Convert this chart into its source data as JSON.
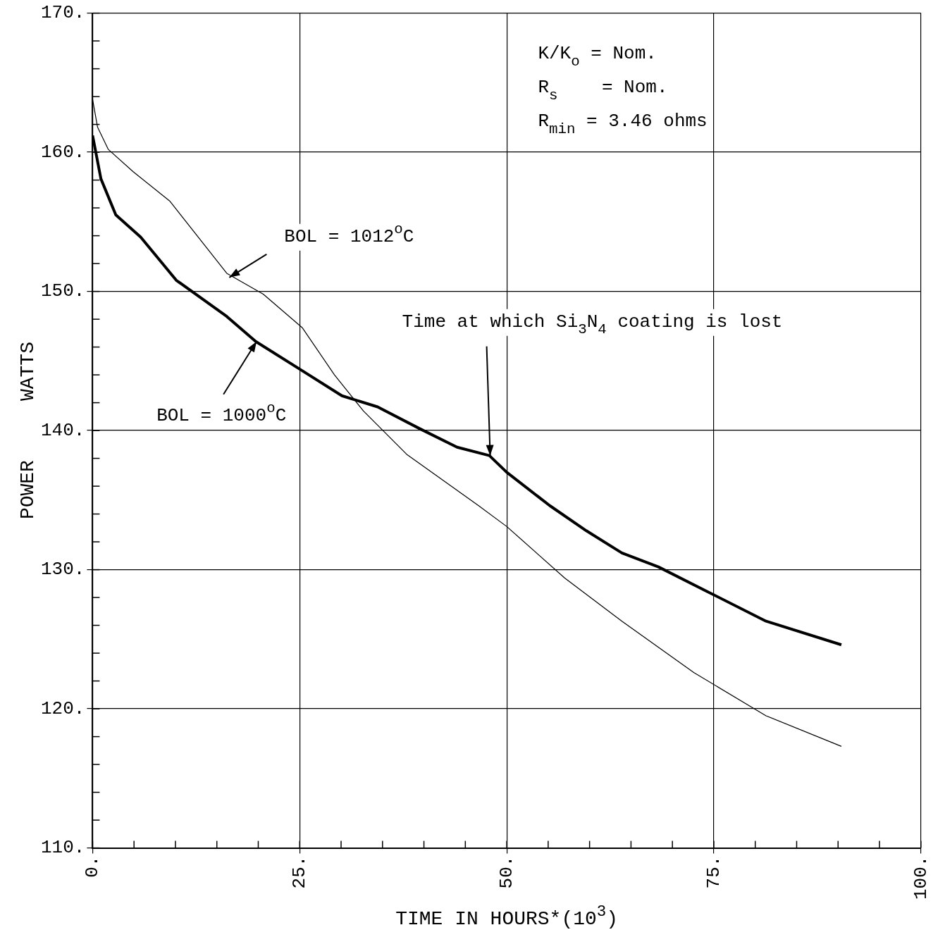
{
  "chart_data": {
    "type": "line",
    "xlabel": "TIME IN HOURS*(10$^{3}$)",
    "ylabel": "POWER     WATTS",
    "xlim": [
      0,
      100
    ],
    "ylim": [
      110,
      170
    ],
    "xticks": [
      {
        "value": 0,
        "label": "0."
      },
      {
        "value": 5,
        "label": null
      },
      {
        "value": 10,
        "label": null
      },
      {
        "value": 15,
        "label": null
      },
      {
        "value": 20,
        "label": null
      },
      {
        "value": 25,
        "label": "25."
      },
      {
        "value": 30,
        "label": null
      },
      {
        "value": 35,
        "label": null
      },
      {
        "value": 40,
        "label": null
      },
      {
        "value": 45,
        "label": null
      },
      {
        "value": 50,
        "label": "50."
      },
      {
        "value": 55,
        "label": null
      },
      {
        "value": 60,
        "label": null
      },
      {
        "value": 65,
        "label": null
      },
      {
        "value": 70,
        "label": null
      },
      {
        "value": 75,
        "label": "75."
      },
      {
        "value": 80,
        "label": null
      },
      {
        "value": 85,
        "label": null
      },
      {
        "value": 90,
        "label": null
      },
      {
        "value": 95,
        "label": null
      },
      {
        "value": 100,
        "label": "100."
      }
    ],
    "yticks": [
      {
        "value": 110,
        "label": "110."
      },
      {
        "value": 112,
        "label": null
      },
      {
        "value": 114,
        "label": null
      },
      {
        "value": 116,
        "label": null
      },
      {
        "value": 118,
        "label": null
      },
      {
        "value": 120,
        "label": "120."
      },
      {
        "value": 122,
        "label": null
      },
      {
        "value": 124,
        "label": null
      },
      {
        "value": 126,
        "label": null
      },
      {
        "value": 128,
        "label": null
      },
      {
        "value": 130,
        "label": "130."
      },
      {
        "value": 132,
        "label": null
      },
      {
        "value": 134,
        "label": null
      },
      {
        "value": 136,
        "label": null
      },
      {
        "value": 138,
        "label": null
      },
      {
        "value": 140,
        "label": "140."
      },
      {
        "value": 142,
        "label": null
      },
      {
        "value": 144,
        "label": null
      },
      {
        "value": 146,
        "label": null
      },
      {
        "value": 148,
        "label": null
      },
      {
        "value": 150,
        "label": "150."
      },
      {
        "value": 152,
        "label": null
      },
      {
        "value": 154,
        "label": null
      },
      {
        "value": 156,
        "label": null
      },
      {
        "value": 158,
        "label": null
      },
      {
        "value": 160,
        "label": "160."
      },
      {
        "value": 162,
        "label": null
      },
      {
        "value": 164,
        "label": null
      },
      {
        "value": 166,
        "label": null
      },
      {
        "value": 168,
        "label": null
      },
      {
        "value": 170,
        "label": "170."
      }
    ],
    "grid": true,
    "legend": false,
    "marker": "none",
    "line_style": "solid",
    "series": [
      {
        "color": "#000000",
        "x": [
          0,
          0.6,
          1.9,
          4.9,
          9.3,
          16.2,
          20.6,
          25.3,
          29.2,
          32.7,
          37.9,
          46.6,
          50,
          57,
          63.9,
          72.6,
          81.3,
          90.4
        ],
        "values": [
          163.8,
          161.8,
          160.2,
          158.6,
          156.5,
          151.3,
          149.8,
          147.4,
          144.0,
          141.4,
          138.3,
          134.6,
          133.1,
          129.4,
          126.3,
          122.6,
          119.5,
          117.3
        ]
      },
      {
        "color": "#000000",
        "x": [
          0,
          1,
          2.8,
          5.8,
          10.1,
          16.2,
          19.7,
          25.3,
          30.1,
          34.4,
          39.6,
          44,
          47.9,
          50,
          55.2,
          59.6,
          63.9,
          68.3,
          74.3,
          81.3,
          90.4
        ],
        "values": [
          161.2,
          158.1,
          155.5,
          153.9,
          150.8,
          148.2,
          146.4,
          144.3,
          142.5,
          141.7,
          140.1,
          138.8,
          138.2,
          137,
          134.6,
          132.8,
          131.2,
          130.2,
          128.4,
          126.3,
          124.6
        ]
      }
    ],
    "annotations": [
      {
        "text": "BOL = 1012$^{o}$C",
        "x": 16.5,
        "y": 151
      },
      {
        "text": "BOL = 1000$^{o}$C",
        "x": 19.8,
        "y": 146.4
      },
      {
        "text": "Time at which Si$_{3}$N$_{4}$ coating is lost",
        "x": 48,
        "y": 138.2
      },
      "K/K$_{o}$ = Nom.",
      "R$_{s}$    = Nom.",
      "R$_{min}$ = 3.46 ohms"
    ]
  }
}
